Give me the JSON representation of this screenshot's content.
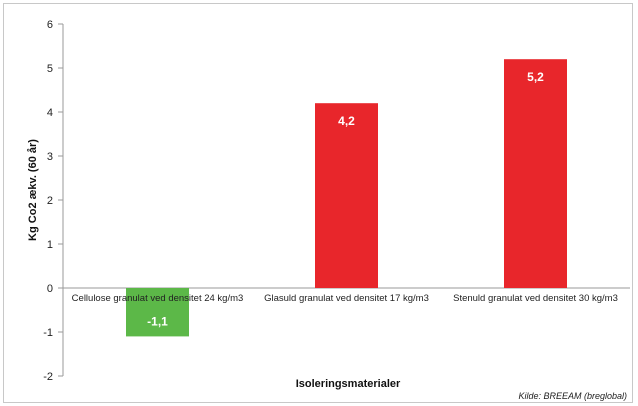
{
  "chart_data": {
    "type": "bar",
    "categories": [
      "Cellulose granulat ved densitet  24 kg/m3",
      "Glasuld granulat ved densitet  17 kg/m3",
      "Stenuld granulat ved densitet  30 kg/m3"
    ],
    "values": [
      -1.1,
      4.2,
      5.2
    ],
    "value_labels": [
      "-1,1",
      "4,2",
      "5,2"
    ],
    "bar_colors": [
      "#5cb848",
      "#e8262b",
      "#e8262b"
    ],
    "xlabel": "Isoleringsmaterialer",
    "ylabel": "Kg Co2 ækv. (60 år)",
    "ylim": [
      -2,
      6
    ],
    "yticks": [
      -2,
      -1,
      0,
      1,
      2,
      3,
      4,
      5,
      6
    ],
    "ytick_labels": [
      "-2",
      "-1",
      "0",
      "1",
      "2",
      "3",
      "4",
      "5",
      "6"
    ],
    "grid": false,
    "legend": "none",
    "source_note": "Kilde: BREEAM (breglobal)"
  }
}
